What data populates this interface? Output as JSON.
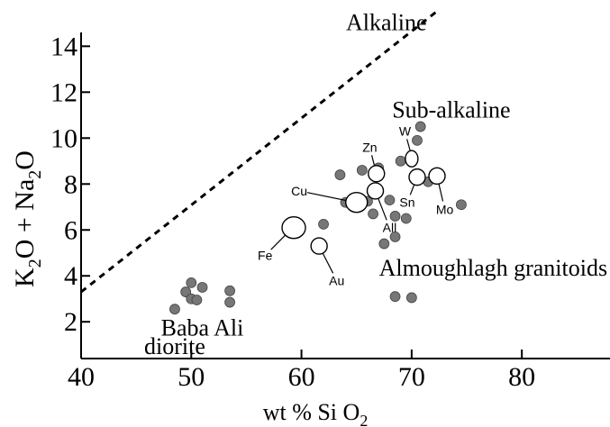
{
  "chart_data": {
    "type": "scatter",
    "title": "",
    "xlabel": {
      "prefix": "wt %  Si O",
      "sub": "2"
    },
    "ylabel": {
      "parts": [
        "K",
        "2",
        "O + Na",
        "2",
        "O"
      ]
    },
    "xlim": [
      40,
      88
    ],
    "ylim": [
      0.4,
      15.7
    ],
    "xticks": [
      "40",
      "50",
      "60",
      "70",
      "80"
    ],
    "yticks": [
      "2",
      "4",
      "6",
      "8",
      "10",
      "12",
      "14"
    ],
    "grid": false,
    "divider": {
      "style": "dashed",
      "x": [
        40,
        72.5
      ],
      "y": [
        3.3,
        15.6
      ]
    },
    "region_labels": [
      {
        "text": "Alkaline",
        "x": 67.7,
        "y": 14.7
      },
      {
        "text": "Sub-alkaline",
        "x": 73.6,
        "y": 10.9
      },
      {
        "text": "Almoughlagh granitoids",
        "x": 77.4,
        "y": 4.0
      },
      {
        "text": "Baba Ali",
        "x": 51.0,
        "y": 1.4
      },
      {
        "text": "diorite",
        "x": 48.5,
        "y": 0.6
      }
    ],
    "series": [
      {
        "name": "",
        "marker": "filled-circle",
        "color": "#777777",
        "x": [
          49.5,
          50.0,
          51.0,
          53.5,
          50.0,
          50.5,
          53.5,
          48.5,
          63.5,
          65.5,
          67.0,
          69.0,
          70.5,
          70.8,
          71.5,
          74.5,
          64.0,
          66.0,
          68.0,
          66.5,
          62.0,
          68.5,
          67.5,
          68.5,
          68.5,
          70.0,
          69.5
        ],
        "y": [
          3.3,
          3.7,
          3.5,
          3.35,
          3.0,
          2.95,
          2.85,
          2.55,
          8.4,
          8.6,
          8.7,
          9.0,
          9.9,
          10.5,
          8.1,
          7.1,
          7.2,
          7.25,
          7.3,
          6.7,
          6.25,
          6.6,
          5.4,
          5.7,
          3.1,
          3.05,
          6.5
        ]
      }
    ],
    "metals": [
      {
        "label": "W",
        "x": 70.0,
        "y": 9.1,
        "rx": 7,
        "ry": 9,
        "lx": 69.4,
        "ly": 10.3
      },
      {
        "label": "Zn",
        "x": 66.8,
        "y": 8.45,
        "rx": 9,
        "ry": 9,
        "lx": 66.2,
        "ly": 9.6
      },
      {
        "label": "Cu",
        "x": 65.0,
        "y": 7.2,
        "rx": 12,
        "ry": 11,
        "lx": 59.8,
        "ly": 7.7
      },
      {
        "label": "All",
        "x": 66.7,
        "y": 7.7,
        "rx": 9,
        "ry": 9,
        "lx": 68.0,
        "ly": 6.1
      },
      {
        "label": "Sn",
        "x": 70.5,
        "y": 8.3,
        "rx": 9,
        "ry": 9,
        "lx": 69.6,
        "ly": 7.2
      },
      {
        "label": "Mo",
        "x": 72.3,
        "y": 8.35,
        "rx": 9,
        "ry": 9,
        "lx": 73.0,
        "ly": 6.9
      },
      {
        "label": "Fe",
        "x": 59.3,
        "y": 6.1,
        "rx": 13,
        "ry": 12,
        "lx": 56.7,
        "ly": 4.9
      },
      {
        "label": "Au",
        "x": 61.6,
        "y": 5.3,
        "rx": 9,
        "ry": 9,
        "lx": 63.2,
        "ly": 3.8
      }
    ]
  }
}
